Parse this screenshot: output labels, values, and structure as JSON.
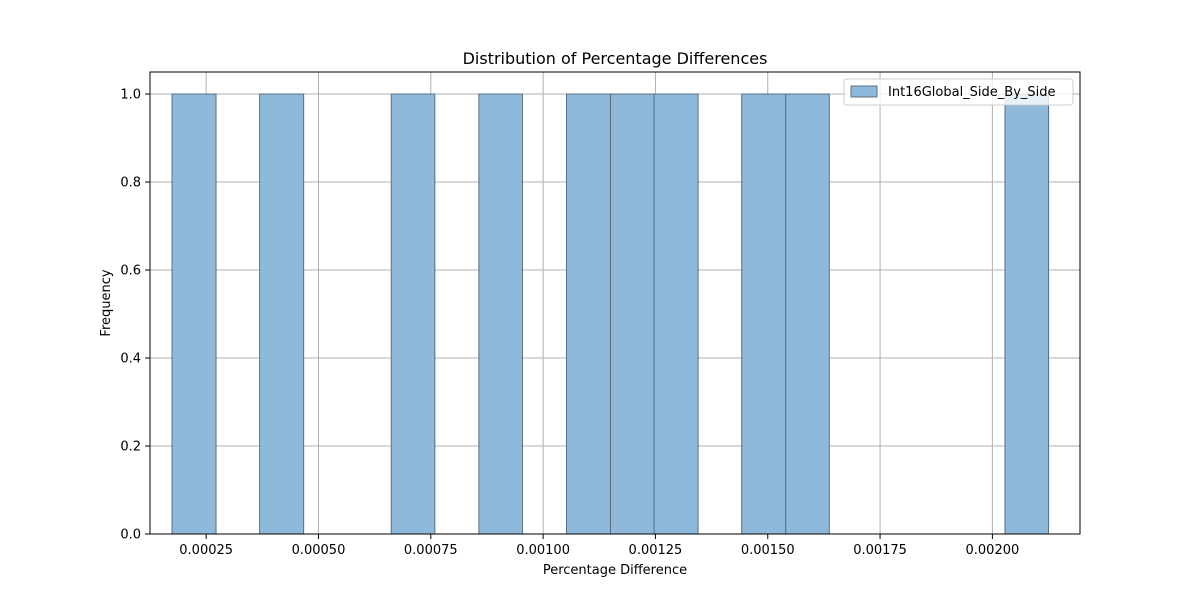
{
  "chart_data": {
    "type": "bar",
    "title": "Distribution of Percentage Differences",
    "xlabel": "Percentage Difference",
    "ylabel": "Frequency",
    "xlim": [
      0.000125,
      0.002195
    ],
    "ylim": [
      0.0,
      1.05
    ],
    "xticks": [
      "0.00025",
      "0.00050",
      "0.00075",
      "0.00100",
      "0.00125",
      "0.00150",
      "0.00175",
      "0.00200"
    ],
    "xtick_values": [
      0.00025,
      0.0005,
      0.00075,
      0.001,
      0.00125,
      0.0015,
      0.00175,
      0.002
    ],
    "yticks": [
      "0.0",
      "0.2",
      "0.4",
      "0.6",
      "0.8",
      "1.0"
    ],
    "ytick_values": [
      0.0,
      0.2,
      0.4,
      0.6,
      0.8,
      1.0
    ],
    "grid": true,
    "legend_position": "top-right",
    "bar_color": "#8fb9da",
    "edge_color": "#5a6f80",
    "series": [
      {
        "name": "Int16Global_Side_By_Side",
        "bins": [
          {
            "x0": 0.000174,
            "x1": 0.000272,
            "count": 1
          },
          {
            "x0": 0.000369,
            "x1": 0.000467,
            "count": 1
          },
          {
            "x0": 0.000662,
            "x1": 0.000759,
            "count": 1
          },
          {
            "x0": 0.000857,
            "x1": 0.000954,
            "count": 1
          },
          {
            "x0": 0.001052,
            "x1": 0.00115,
            "count": 1
          },
          {
            "x0": 0.00115,
            "x1": 0.001247,
            "count": 1
          },
          {
            "x0": 0.001247,
            "x1": 0.001345,
            "count": 1
          },
          {
            "x0": 0.001442,
            "x1": 0.00154,
            "count": 1
          },
          {
            "x0": 0.00154,
            "x1": 0.001637,
            "count": 1
          },
          {
            "x0": 0.002028,
            "x1": 0.002125,
            "count": 1
          }
        ]
      }
    ]
  }
}
